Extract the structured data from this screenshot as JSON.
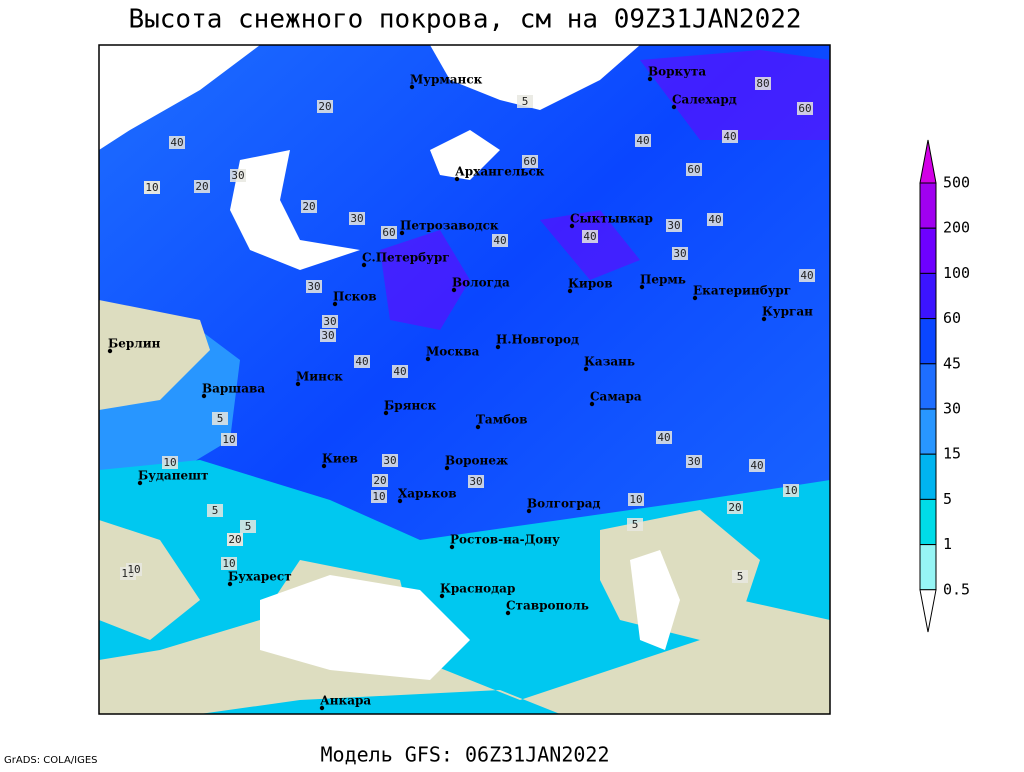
{
  "header": {
    "title": "Высота снежного покрова, см на 09Z31JAN2022"
  },
  "footer": {
    "model": "Модель GFS: 06Z31JAN2022",
    "credit": "GrADS: COLA/IGES"
  },
  "cities": [
    "Мурманск",
    "Воркута",
    "Салехард",
    "Архангельск",
    "Сыктывкар",
    "Петрозаводск",
    "С.Петербург",
    "Псков",
    "Вологда",
    "Киров",
    "Пермь",
    "Екатеринбург",
    "Курган",
    "Берлин",
    "Минск",
    "Варшава",
    "Москва",
    "Н.Новгород",
    "Казань",
    "Брянск",
    "Тамбов",
    "Самара",
    "Киев",
    "Воронеж",
    "Харьков",
    "Будапешт",
    "Волгоград",
    "Ростов-на-Дону",
    "Бухарест",
    "Краснодар",
    "Ставрополь",
    "Анкара"
  ],
  "contour_labels": [
    "40",
    "20",
    "10",
    "5",
    "30",
    "60",
    "80",
    "60",
    "40",
    "40",
    "60",
    "30",
    "20",
    "10",
    "30",
    "20",
    "30",
    "60",
    "40",
    "40",
    "30",
    "40",
    "40",
    "30",
    "30",
    "40",
    "40",
    "5",
    "10",
    "20",
    "30",
    "10",
    "30",
    "5",
    "10",
    "20",
    "10",
    "5",
    "10",
    "40",
    "30",
    "40",
    "10",
    "20",
    "5",
    "10",
    "5",
    "10",
    "20"
  ],
  "legend": {
    "labels": [
      "500",
      "200",
      "100",
      "60",
      "45",
      "30",
      "15",
      "5",
      "1",
      "0.5"
    ],
    "colors": [
      "#d200e6",
      "#a000f0",
      "#6e00ff",
      "#3c14ff",
      "#0a46ff",
      "#1e6eff",
      "#2896ff",
      "#00b4f0",
      "#00dce8",
      "#96f5f5",
      "#ffffff"
    ]
  }
}
